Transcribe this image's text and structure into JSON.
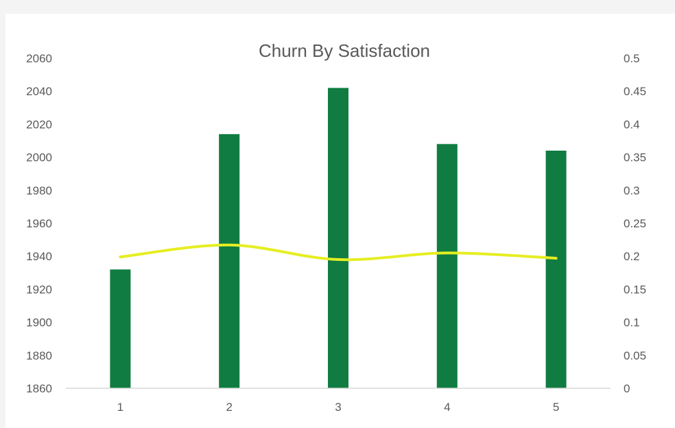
{
  "chart_data": {
    "type": "bar",
    "title": "Churn By Satisfaction",
    "xlabel": "",
    "ylabel": "",
    "categories": [
      "1",
      "2",
      "3",
      "4",
      "5"
    ],
    "series": [
      {
        "type": "bar",
        "axis": "left",
        "color": "#107c41",
        "values": [
          1932,
          2014,
          2042,
          2008,
          2004
        ]
      },
      {
        "type": "line",
        "axis": "right",
        "smooth": true,
        "color": "#e6ee22",
        "values": [
          0.199,
          0.217,
          0.195,
          0.205,
          0.197
        ]
      }
    ],
    "ylim": [
      1860,
      2060
    ],
    "y_ticks": [
      "1860",
      "1880",
      "1900",
      "1920",
      "1940",
      "1960",
      "1980",
      "2000",
      "2020",
      "2040",
      "2060"
    ],
    "y2lim": [
      0,
      0.5
    ],
    "y2_ticks": [
      "0",
      "0.05",
      "0.1",
      "0.15",
      "0.2",
      "0.25",
      "0.3",
      "0.35",
      "0.4",
      "0.45",
      "0.5"
    ],
    "grid": false,
    "legend": "none",
    "axis_color": "#d9d9d9",
    "text_color": "#595959"
  }
}
